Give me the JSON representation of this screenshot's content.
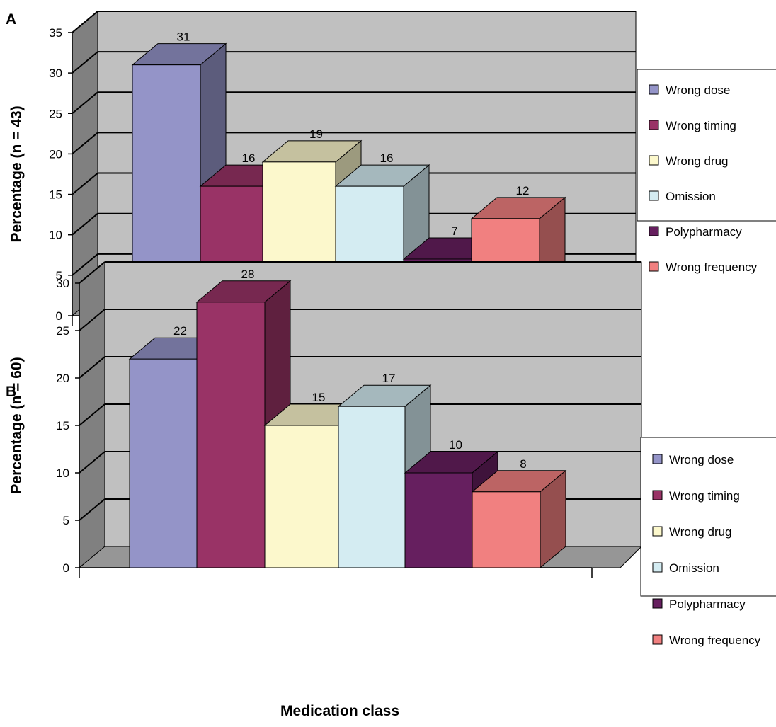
{
  "chart_data": [
    {
      "type": "bar",
      "panel": "A",
      "ylabel": "Percentage (n = 43)",
      "xlabel": "Medication class",
      "ylim": [
        0,
        35
      ],
      "yticks": [
        "0",
        "5",
        "10",
        "15",
        "20",
        "25",
        "30",
        "35"
      ],
      "grid": true,
      "legend_position": "right",
      "series": [
        {
          "name": "Wrong dose",
          "value": 31,
          "label": "31",
          "color": "#9494c8"
        },
        {
          "name": "Wrong timing",
          "value": 16,
          "label": "16",
          "color": "#993366"
        },
        {
          "name": "Wrong drug",
          "value": 19,
          "label": "19",
          "color": "#fcf8cc"
        },
        {
          "name": "Omission",
          "value": 16,
          "label": "16",
          "color": "#d4ecf2"
        },
        {
          "name": "Polypharmacy",
          "value": 7,
          "label": "7",
          "color": "#661f5f"
        },
        {
          "name": "Wrong frequency",
          "value": 12,
          "label": "12",
          "color": "#f18080"
        }
      ]
    },
    {
      "type": "bar",
      "panel": "B",
      "ylabel": "Percentage (n = 60)",
      "xlabel": "Medication class",
      "ylim": [
        0,
        30
      ],
      "yticks": [
        "0",
        "5",
        "10",
        "15",
        "20",
        "25",
        "30"
      ],
      "grid": true,
      "legend_position": "right",
      "series": [
        {
          "name": "Wrong dose",
          "value": 22,
          "label": "22",
          "color": "#9494c8"
        },
        {
          "name": "Wrong timing",
          "value": 28,
          "label": "28",
          "color": "#993366"
        },
        {
          "name": "Wrong drug",
          "value": 15,
          "label": "15",
          "color": "#fcf8cc"
        },
        {
          "name": "Omission",
          "value": 17,
          "label": "17",
          "color": "#d4ecf2"
        },
        {
          "name": "Polypharmacy",
          "value": 10,
          "label": "10",
          "color": "#661f5f"
        },
        {
          "name": "Wrong frequency",
          "value": 8,
          "label": "8",
          "color": "#f18080"
        }
      ]
    }
  ],
  "colors": {
    "plot_back_wall": "#c0c0c0",
    "plot_side_wall": "#808080",
    "plot_floor": "#969696",
    "gridline": "#000000"
  }
}
